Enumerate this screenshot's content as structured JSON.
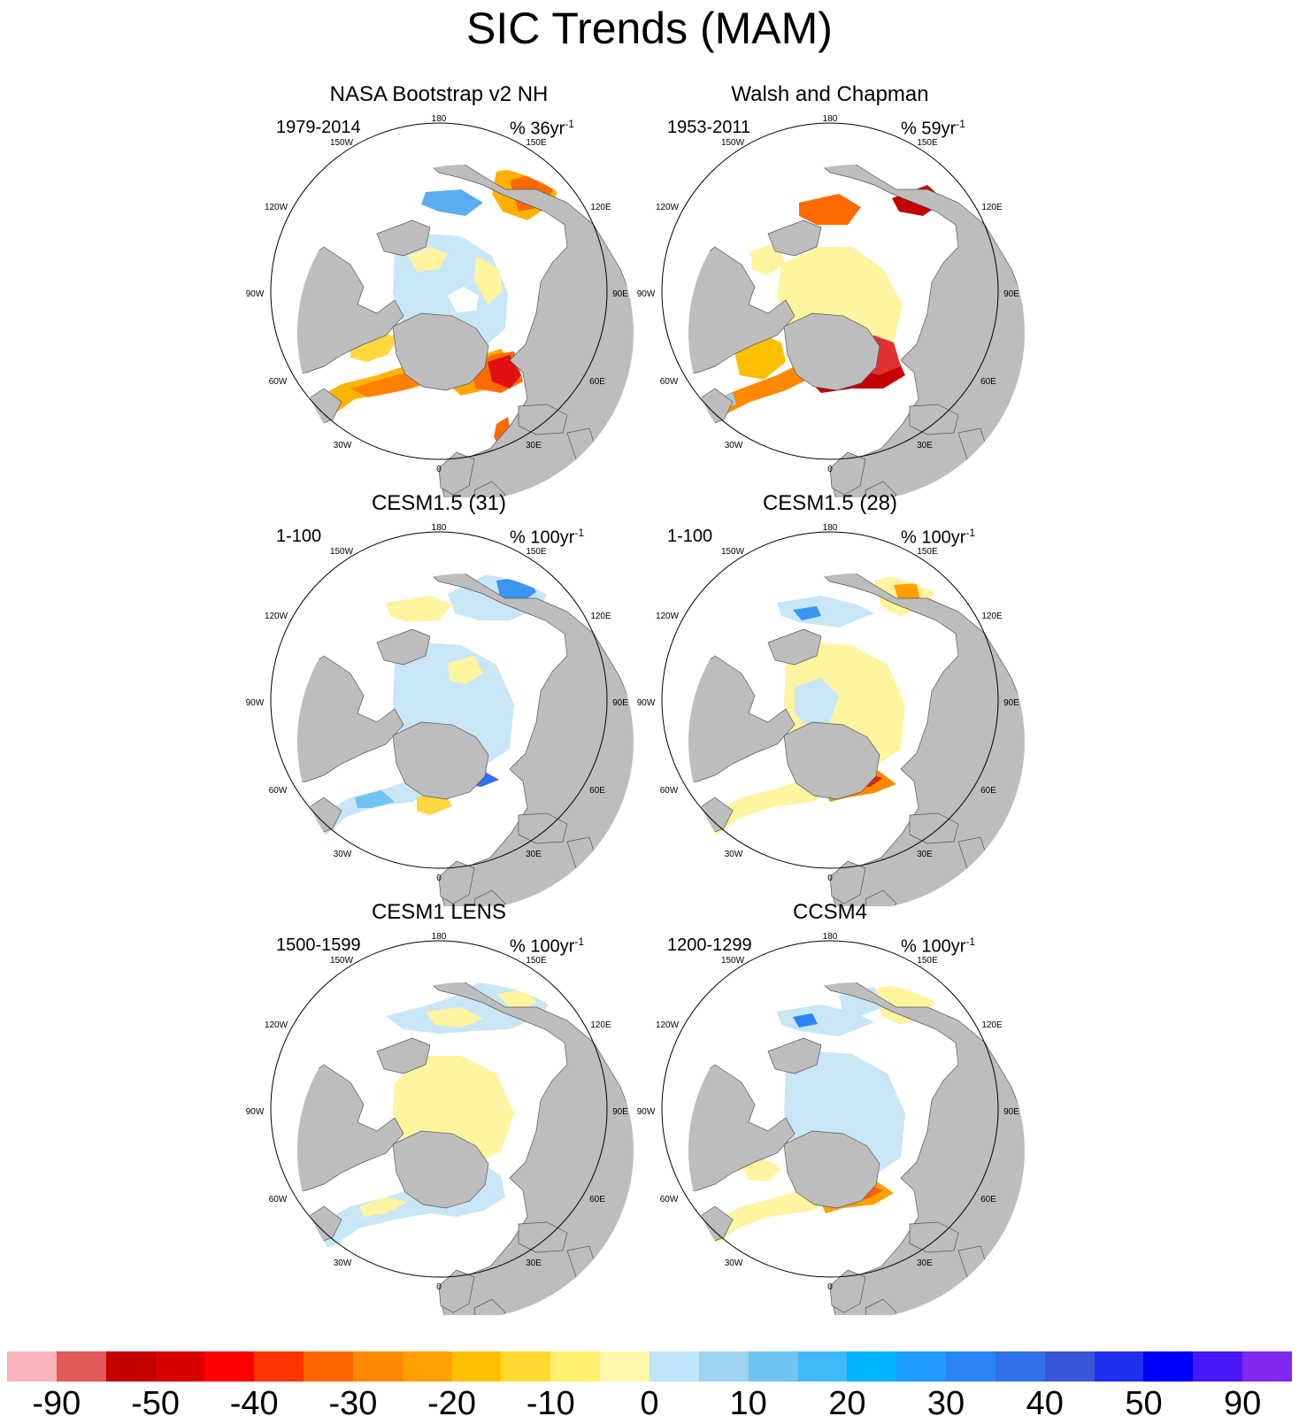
{
  "title": "SIC Trends (MAM)",
  "panels": [
    {
      "title": "NASA Bootstrap v2 NH",
      "period": "1979-2014",
      "units": "% 36yr",
      "units_exp": "-1",
      "variant": "nasa"
    },
    {
      "title": "Walsh and Chapman",
      "period": "1953-2011",
      "units": "% 59yr",
      "units_exp": "-1",
      "variant": "walsh"
    },
    {
      "title": "CESM1.5 (31)",
      "period": "1-100",
      "units": "% 100yr",
      "units_exp": "-1",
      "variant": "cesm31"
    },
    {
      "title": "CESM1.5 (28)",
      "period": "1-100",
      "units": "% 100yr",
      "units_exp": "-1",
      "variant": "cesm28"
    },
    {
      "title": "CESM1 LENS",
      "period": "1500-1599",
      "units": "% 100yr",
      "units_exp": "-1",
      "variant": "lens"
    },
    {
      "title": "CCSM4",
      "period": "1200-1299",
      "units": "% 100yr",
      "units_exp": "-1",
      "variant": "ccsm4"
    }
  ],
  "map_labels": {
    "lon180": "180",
    "lon150w": "150W",
    "lon150e": "150E",
    "lon120w": "120W",
    "lon120e": "120E",
    "lon90w": "90W",
    "lon90e": "90E",
    "lon60w": "60W",
    "lon60e": "60E",
    "lon30w": "30W",
    "lon30e": "30E",
    "lon0": "0"
  },
  "colorbar": {
    "colors": [
      "#fbb4b9",
      "#e05a5a",
      "#c40000",
      "#d80000",
      "#ff0000",
      "#ff3300",
      "#ff6600",
      "#ff8800",
      "#ffa000",
      "#ffc000",
      "#ffd930",
      "#fff070",
      "#fff8a8",
      "#c0e4f8",
      "#9cd3f0",
      "#70c4f0",
      "#40b8f8",
      "#00b4ff",
      "#1e9cff",
      "#2a84f8",
      "#3070e8",
      "#3856d8",
      "#2030f0",
      "#0000ff",
      "#4a18f8",
      "#8028f0"
    ],
    "labels": [
      "-90",
      "-50",
      "-40",
      "-30",
      "-20",
      "-10",
      "0",
      "10",
      "20",
      "30",
      "40",
      "50",
      "90"
    ]
  },
  "colors": {
    "land": "#bdbdbd",
    "ocean": "#ffffff"
  }
}
